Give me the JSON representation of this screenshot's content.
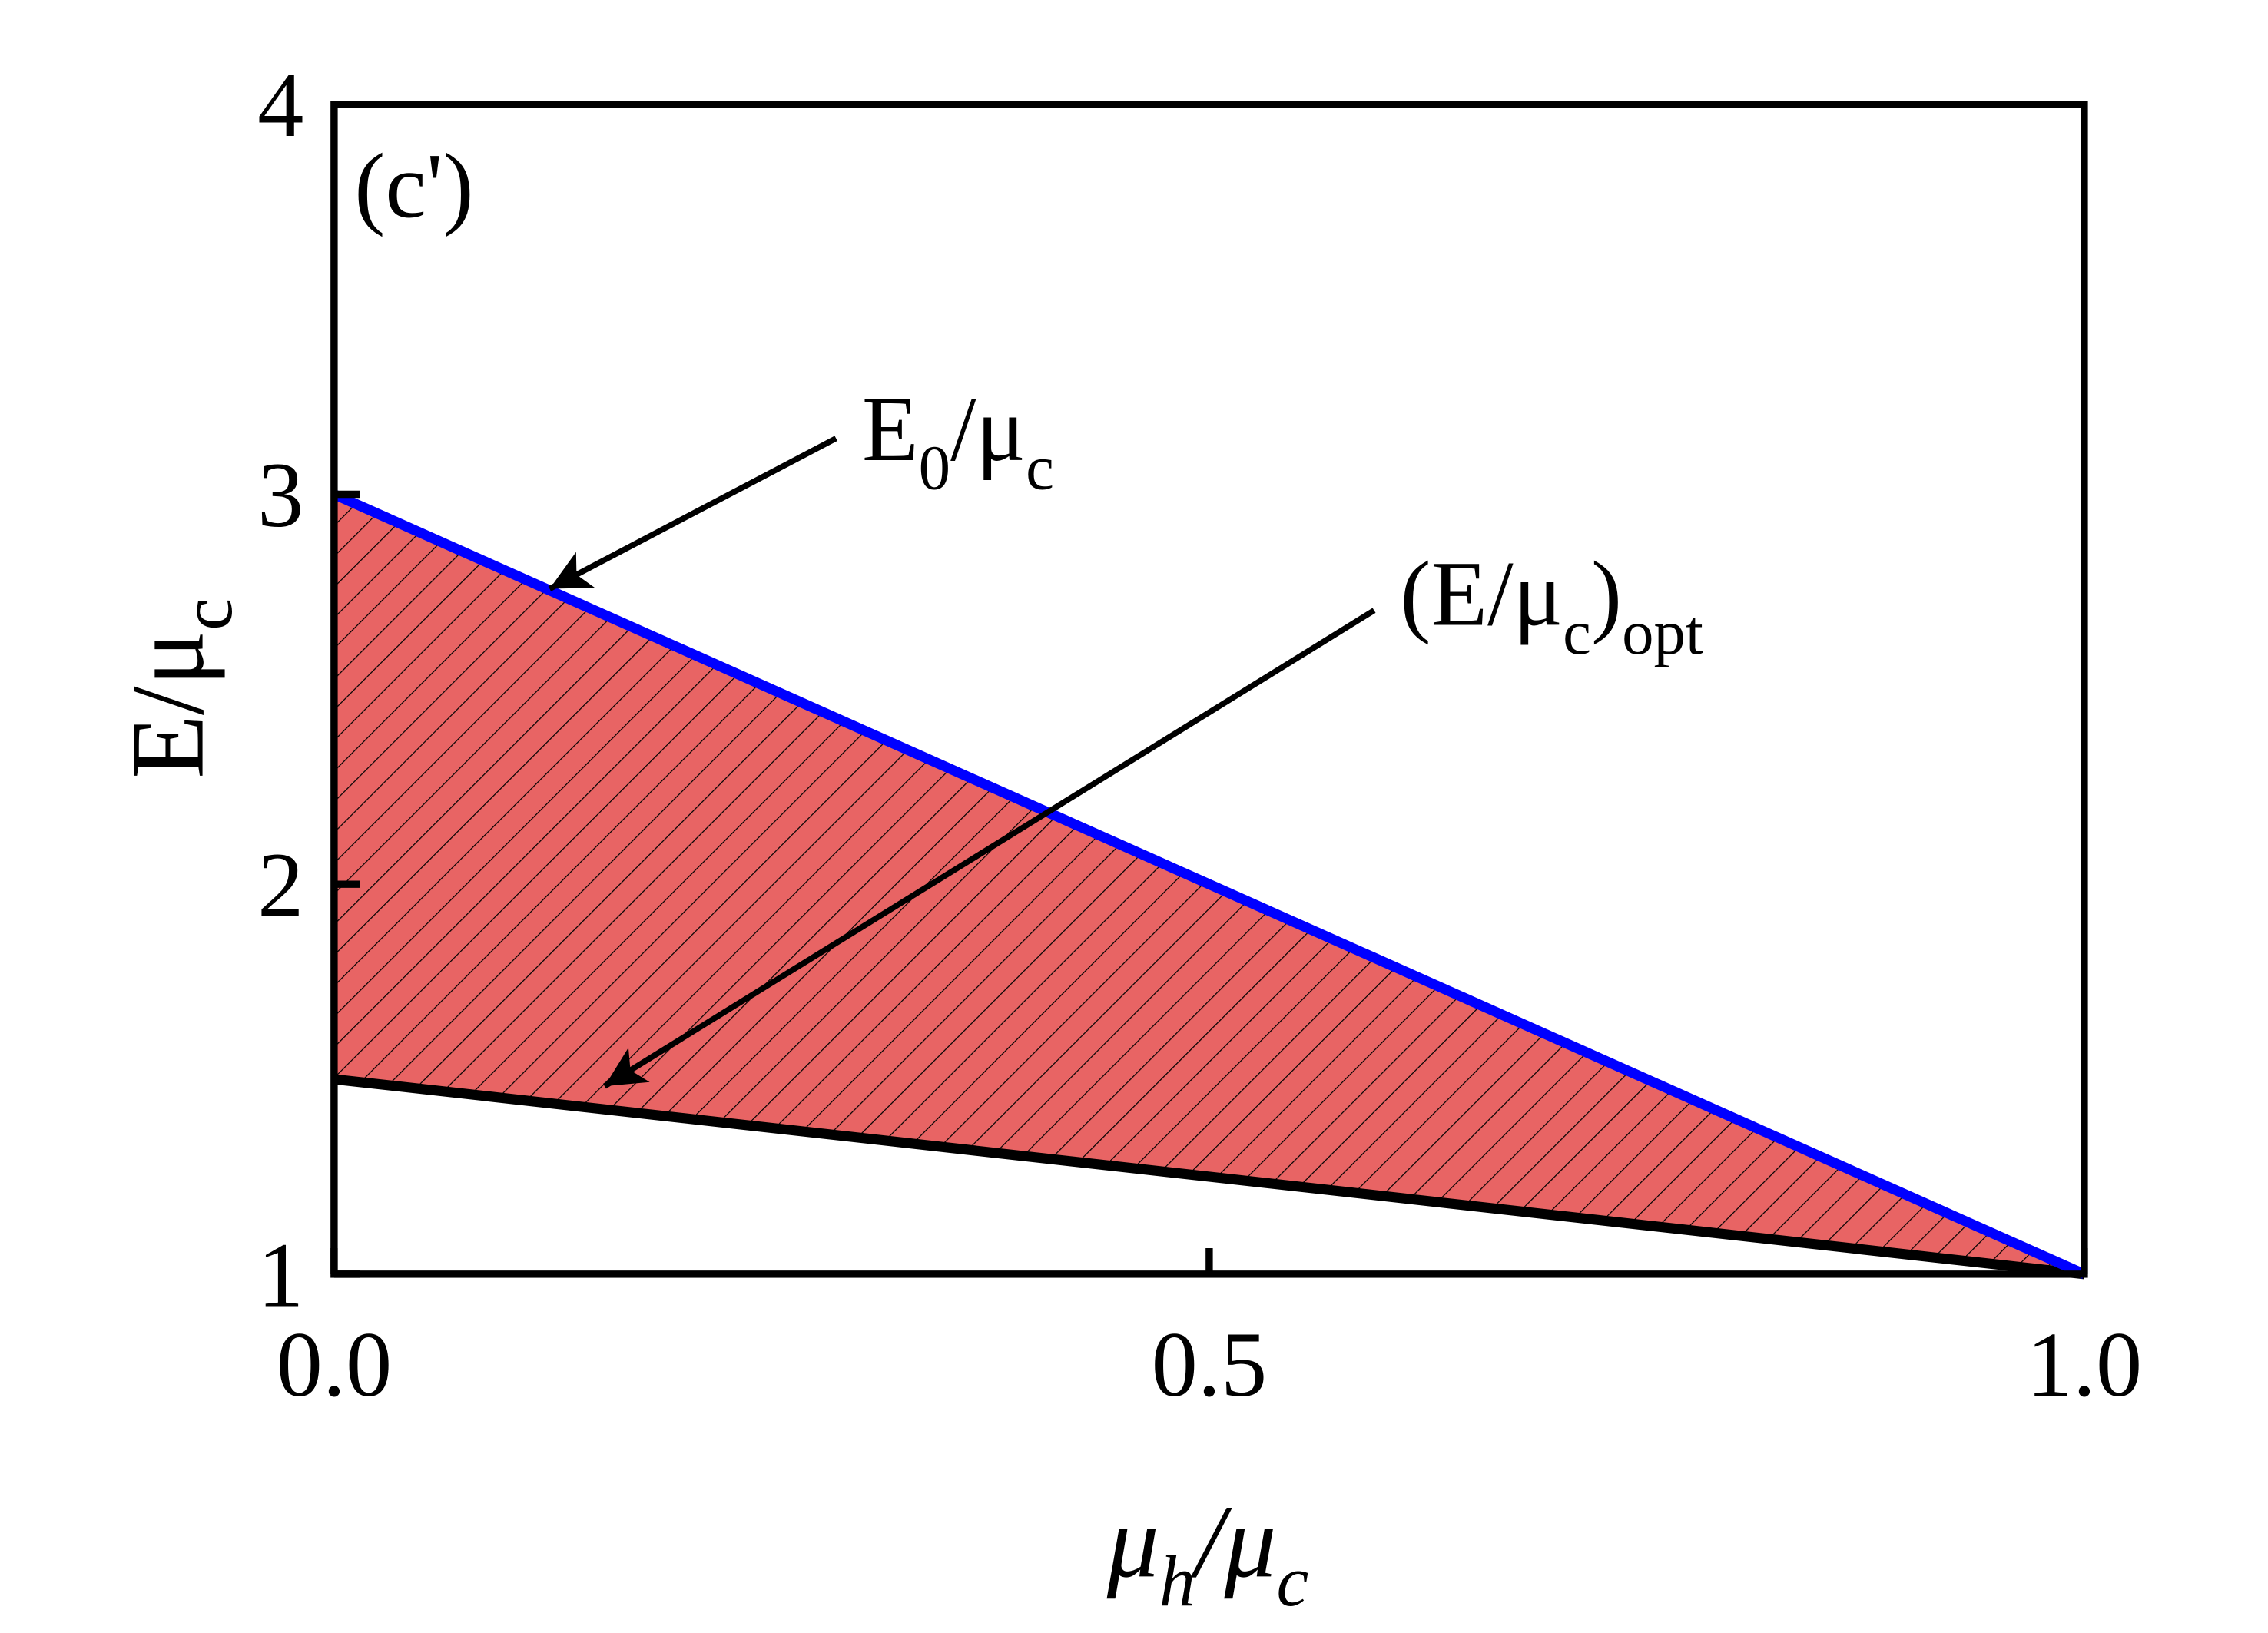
{
  "chart_data": {
    "type": "line",
    "panel_label": "(c')",
    "x_label": [
      "μ",
      "h",
      "/μ",
      "c"
    ],
    "y_label": [
      "E/μ",
      "c"
    ],
    "x": [
      0,
      1
    ],
    "series": [
      {
        "name": [
          "E",
          "0",
          "/μ",
          "c"
        ],
        "color": "#0000ff",
        "values": [
          3,
          1
        ]
      },
      {
        "name": [
          "(E/μ",
          "c",
          ")",
          "opt"
        ],
        "color": "#000000",
        "values": [
          1.5,
          1
        ]
      }
    ],
    "fill_between": {
      "color": "#e86464",
      "hatch": true
    },
    "xlim": [
      0,
      1
    ],
    "ylim": [
      1,
      4
    ],
    "xticks": [
      {
        "value": 0,
        "label": "0.0"
      },
      {
        "value": 0.5,
        "label": "0.5"
      },
      {
        "value": 1,
        "label": "1.0"
      }
    ],
    "yticks": [
      1,
      2,
      3,
      4
    ]
  }
}
